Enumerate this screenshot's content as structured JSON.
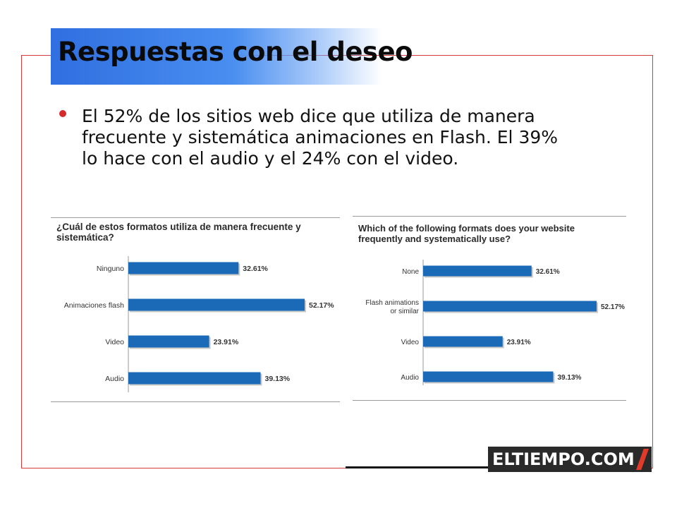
{
  "slide": {
    "title": "Respuestas con el deseo",
    "bullet": "El 52% de los sitios web dice que utiliza de manera frecuente y sistemática animaciones en Flash. El 39% lo hace con el audio y el 24% con el video."
  },
  "logo": {
    "text": "ELTIEMPO.COM",
    "accent_color": "#e03a2a"
  },
  "colors": {
    "frame": "#d23b3b",
    "title_band": "#2f6fe0",
    "bar": "#1a6ab8",
    "bullet": "#d42c2c"
  },
  "chart_data": [
    {
      "type": "bar",
      "orientation": "horizontal",
      "title": "¿Cuál de estos formatos utiliza de manera frecuente y sistemática?",
      "categories": [
        "Ninguno",
        "Animaciones flash",
        "Video",
        "Audio"
      ],
      "values": [
        32.61,
        52.17,
        23.91,
        39.13
      ],
      "value_labels": [
        "32.61%",
        "52.17%",
        "23.91%",
        "39.13%"
      ],
      "xlim": [
        0,
        52.17
      ],
      "grid": false
    },
    {
      "type": "bar",
      "orientation": "horizontal",
      "title": "Which of the following formats does your website frequently and systematically use?",
      "categories": [
        "None",
        "Flash animations or similar",
        "Video",
        "Audio"
      ],
      "category_lines": [
        [
          "None"
        ],
        [
          "Flash animations",
          "or similar"
        ],
        [
          "Video"
        ],
        [
          "Audio"
        ]
      ],
      "values": [
        32.61,
        52.17,
        23.91,
        39.13
      ],
      "value_labels": [
        "32.61%",
        "52.17%",
        "23.91%",
        "39.13%"
      ],
      "xlim": [
        0,
        52.17
      ],
      "grid": false
    }
  ]
}
